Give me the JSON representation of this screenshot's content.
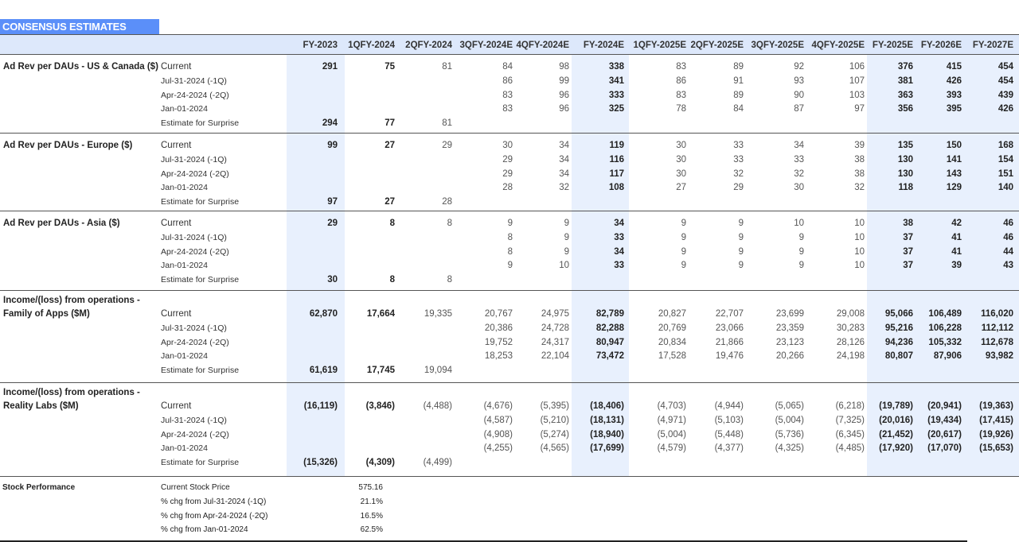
{
  "title": "CONSENSUS ESTIMATES",
  "columns": [
    "FY-2023",
    "1QFY-2024",
    "2QFY-2024",
    "3QFY-2024E",
    "4QFY-2024E",
    "FY-2024E",
    "1QFY-2025E",
    "2QFY-2025E",
    "3QFY-2025E",
    "4QFY-2025E",
    "FY-2025E",
    "FY-2026E",
    "FY-2027E"
  ],
  "row_labels": [
    "Current",
    "Jul-31-2024 (-1Q)",
    "Apr-24-2024 (-2Q)",
    "Jan-01-2024",
    "Estimate for Surprise"
  ],
  "sections": [
    {
      "name": "Ad Rev per DAUs - US & Canada ($)",
      "rows": [
        [
          "291",
          "75",
          "81",
          "84",
          "98",
          "338",
          "83",
          "89",
          "92",
          "106",
          "376",
          "415",
          "454"
        ],
        [
          "",
          "",
          "",
          "86",
          "99",
          "341",
          "86",
          "91",
          "93",
          "107",
          "381",
          "426",
          "454"
        ],
        [
          "",
          "",
          "",
          "83",
          "96",
          "333",
          "83",
          "89",
          "90",
          "103",
          "363",
          "393",
          "439"
        ],
        [
          "",
          "",
          "",
          "83",
          "96",
          "325",
          "78",
          "84",
          "87",
          "97",
          "356",
          "395",
          "426"
        ],
        [
          "294",
          "77",
          "81",
          "",
          "",
          "",
          "",
          "",
          "",
          "",
          "",
          "",
          ""
        ]
      ]
    },
    {
      "name": "Ad Rev per DAUs - Europe ($)",
      "rows": [
        [
          "99",
          "27",
          "29",
          "30",
          "34",
          "119",
          "30",
          "33",
          "34",
          "39",
          "135",
          "150",
          "168"
        ],
        [
          "",
          "",
          "",
          "29",
          "34",
          "116",
          "30",
          "33",
          "33",
          "38",
          "130",
          "141",
          "154"
        ],
        [
          "",
          "",
          "",
          "29",
          "34",
          "117",
          "30",
          "32",
          "32",
          "38",
          "130",
          "143",
          "151"
        ],
        [
          "",
          "",
          "",
          "28",
          "32",
          "108",
          "27",
          "29",
          "30",
          "32",
          "118",
          "129",
          "140"
        ],
        [
          "97",
          "27",
          "28",
          "",
          "",
          "",
          "",
          "",
          "",
          "",
          "",
          "",
          ""
        ]
      ]
    },
    {
      "name": "Ad Rev per DAUs - Asia ($)",
      "rows": [
        [
          "29",
          "8",
          "8",
          "9",
          "9",
          "34",
          "9",
          "9",
          "10",
          "10",
          "38",
          "42",
          "46"
        ],
        [
          "",
          "",
          "",
          "8",
          "9",
          "33",
          "9",
          "9",
          "9",
          "10",
          "37",
          "41",
          "46"
        ],
        [
          "",
          "",
          "",
          "8",
          "9",
          "34",
          "9",
          "9",
          "9",
          "10",
          "37",
          "41",
          "44"
        ],
        [
          "",
          "",
          "",
          "9",
          "10",
          "33",
          "9",
          "9",
          "9",
          "10",
          "37",
          "39",
          "43"
        ],
        [
          "30",
          "8",
          "8",
          "",
          "",
          "",
          "",
          "",
          "",
          "",
          "",
          "",
          ""
        ]
      ]
    },
    {
      "name_line1": "Income/(loss) from operations -",
      "name_line2": "Family of Apps ($M)",
      "rows": [
        [
          "62,870",
          "17,664",
          "19,335",
          "20,767",
          "24,975",
          "82,789",
          "20,827",
          "22,707",
          "23,699",
          "29,008",
          "95,066",
          "106,489",
          "116,020"
        ],
        [
          "",
          "",
          "",
          "20,386",
          "24,728",
          "82,288",
          "20,769",
          "23,066",
          "23,359",
          "30,283",
          "95,216",
          "106,228",
          "112,112"
        ],
        [
          "",
          "",
          "",
          "19,752",
          "24,317",
          "80,947",
          "20,834",
          "21,866",
          "23,123",
          "28,126",
          "94,236",
          "105,332",
          "112,678"
        ],
        [
          "",
          "",
          "",
          "18,253",
          "22,104",
          "73,472",
          "17,528",
          "19,476",
          "20,266",
          "24,198",
          "80,807",
          "87,906",
          "93,982"
        ],
        [
          "61,619",
          "17,745",
          "19,094",
          "",
          "",
          "",
          "",
          "",
          "",
          "",
          "",
          "",
          ""
        ]
      ]
    },
    {
      "name_line1": "Income/(loss) from operations -",
      "name_line2": "Reality Labs ($M)",
      "rows": [
        [
          "(16,119)",
          "(3,846)",
          "(4,488)",
          "(4,676)",
          "(5,395)",
          "(18,406)",
          "(4,703)",
          "(4,944)",
          "(5,065)",
          "(6,218)",
          "(19,789)",
          "(20,941)",
          "(19,363)"
        ],
        [
          "",
          "",
          "",
          "(4,587)",
          "(5,210)",
          "(18,131)",
          "(4,971)",
          "(5,103)",
          "(5,004)",
          "(7,325)",
          "(20,016)",
          "(19,434)",
          "(17,415)"
        ],
        [
          "",
          "",
          "",
          "(4,908)",
          "(5,274)",
          "(18,940)",
          "(5,004)",
          "(5,448)",
          "(5,736)",
          "(6,345)",
          "(21,452)",
          "(20,617)",
          "(19,926)"
        ],
        [
          "",
          "",
          "",
          "(4,255)",
          "(4,565)",
          "(17,699)",
          "(4,579)",
          "(4,377)",
          "(4,325)",
          "(4,485)",
          "(17,920)",
          "(17,070)",
          "(15,653)"
        ],
        [
          "(15,326)",
          "(4,309)",
          "(4,499)",
          "",
          "",
          "",
          "",
          "",
          "",
          "",
          "",
          "",
          ""
        ]
      ]
    }
  ],
  "stock": {
    "title": "Stock Performance",
    "items": [
      {
        "label": "Current Stock Price",
        "value": "575.16"
      },
      {
        "label": "% chg from Jul-31-2024 (-1Q)",
        "value": "21.1%"
      },
      {
        "label": "% chg from Apr-24-2024 (-2Q)",
        "value": "16.5%"
      },
      {
        "label": "% chg from Jan-01-2024",
        "value": "62.5%"
      }
    ]
  },
  "colors": {
    "title_bg": "#5b8ff9",
    "header_bg": "#dde8fb",
    "band_bg": "#e8f0fd"
  }
}
